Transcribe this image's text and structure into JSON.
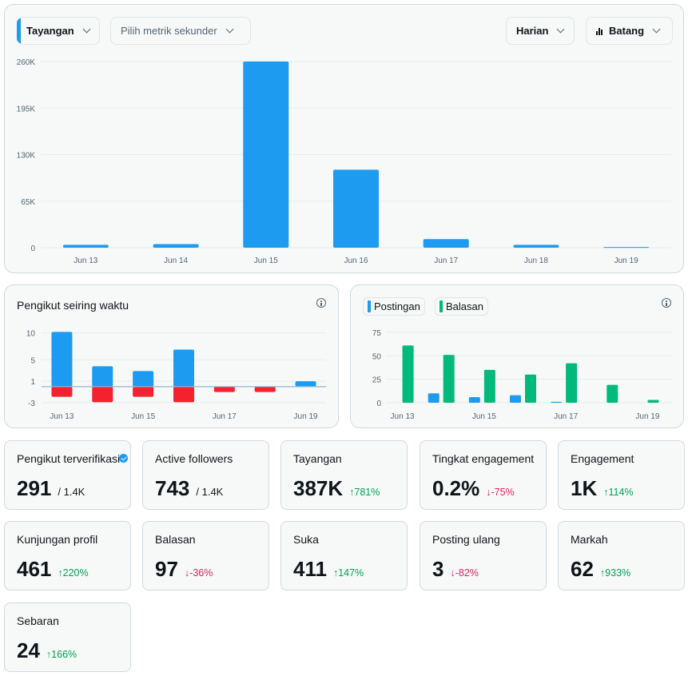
{
  "controls": {
    "primary_metric": "Tayangan",
    "secondary_metric_placeholder": "Pilih metrik sekunder",
    "interval": "Harian",
    "chart_type": "Batang",
    "icons": {
      "chevron": "chevron-down-icon",
      "chart": "bar-chart-icon"
    }
  },
  "colors": {
    "blue": "#1d9bf0",
    "green": "#00ba7c",
    "red": "#f4212e",
    "up": "#00a056",
    "down": "#e0245e"
  },
  "chart_data": [
    {
      "type": "bar",
      "categories": [
        "Jun 13",
        "Jun 14",
        "Jun 15",
        "Jun 16",
        "Jun 17",
        "Jun 18",
        "Jun 19"
      ],
      "values": [
        4000,
        5000,
        260000,
        109000,
        12000,
        4000,
        1000
      ],
      "ylim": [
        0,
        260000
      ],
      "yticks": [
        "0",
        "65K",
        "130K",
        "195K",
        "260K"
      ],
      "ytick_values": [
        0,
        65000,
        130000,
        195000,
        260000
      ],
      "grid": true
    },
    {
      "type": "bar",
      "title": "Pengikut seiring waktu",
      "categories": [
        "Jun 13",
        "Jun 14",
        "Jun 15",
        "Jun 16",
        "Jun 17",
        "Jun 18",
        "Jun 19"
      ],
      "xticks": [
        "Jun 13",
        "Jun 15",
        "Jun 17",
        "Jun 19"
      ],
      "series": [
        {
          "values": [
            10.2,
            3.8,
            2.9,
            6.9,
            0,
            0,
            1.0
          ]
        },
        {
          "values": [
            -1.9,
            -2.9,
            -1.9,
            -2.9,
            -1.0,
            -1.0,
            0
          ]
        }
      ],
      "ylim": [
        -3,
        11
      ],
      "yticks": [
        "-3",
        "1",
        "5",
        "10"
      ],
      "ytick_values": [
        -3,
        1,
        5,
        10
      ]
    },
    {
      "type": "bar",
      "categories": [
        "Jun 13",
        "Jun 14",
        "Jun 15",
        "Jun 16",
        "Jun 17",
        "Jun 18",
        "Jun 19"
      ],
      "xticks": [
        "Jun 13",
        "Jun 15",
        "Jun 17",
        "Jun 19"
      ],
      "series": [
        {
          "name": "Postingan",
          "values": [
            0,
            10,
            6,
            8,
            1,
            0,
            0
          ]
        },
        {
          "name": "Balasan",
          "values": [
            61,
            51,
            35,
            30,
            42,
            19,
            3
          ]
        }
      ],
      "ylim": [
        0,
        80
      ],
      "yticks": [
        "0",
        "25",
        "50",
        "75"
      ],
      "ytick_values": [
        0,
        25,
        50,
        75
      ],
      "legend": "top-left"
    }
  ],
  "tiles": [
    {
      "label": "Pengikut terverifikasi",
      "value": "291",
      "sub": "/ 1.4K",
      "verified": true
    },
    {
      "label": "Active followers",
      "value": "743",
      "sub": "/ 1.4K"
    },
    {
      "label": "Tayangan",
      "value": "387K",
      "change": "781%",
      "dir": "up"
    },
    {
      "label": "Tingkat engagement",
      "value": "0.2%",
      "change": "-75%",
      "dir": "down"
    },
    {
      "label": "Engagement",
      "value": "1K",
      "change": "114%",
      "dir": "up"
    },
    {
      "label": "Kunjungan profil",
      "value": "461",
      "change": "220%",
      "dir": "up"
    },
    {
      "label": "Balasan",
      "value": "97",
      "change": "-36%",
      "dir": "down"
    },
    {
      "label": "Suka",
      "value": "411",
      "change": "147%",
      "dir": "up"
    },
    {
      "label": "Posting ulang",
      "value": "3",
      "change": "-82%",
      "dir": "down"
    },
    {
      "label": "Markah",
      "value": "62",
      "change": "933%",
      "dir": "up"
    },
    {
      "label": "Sebaran",
      "value": "24",
      "change": "166%",
      "dir": "up"
    }
  ]
}
